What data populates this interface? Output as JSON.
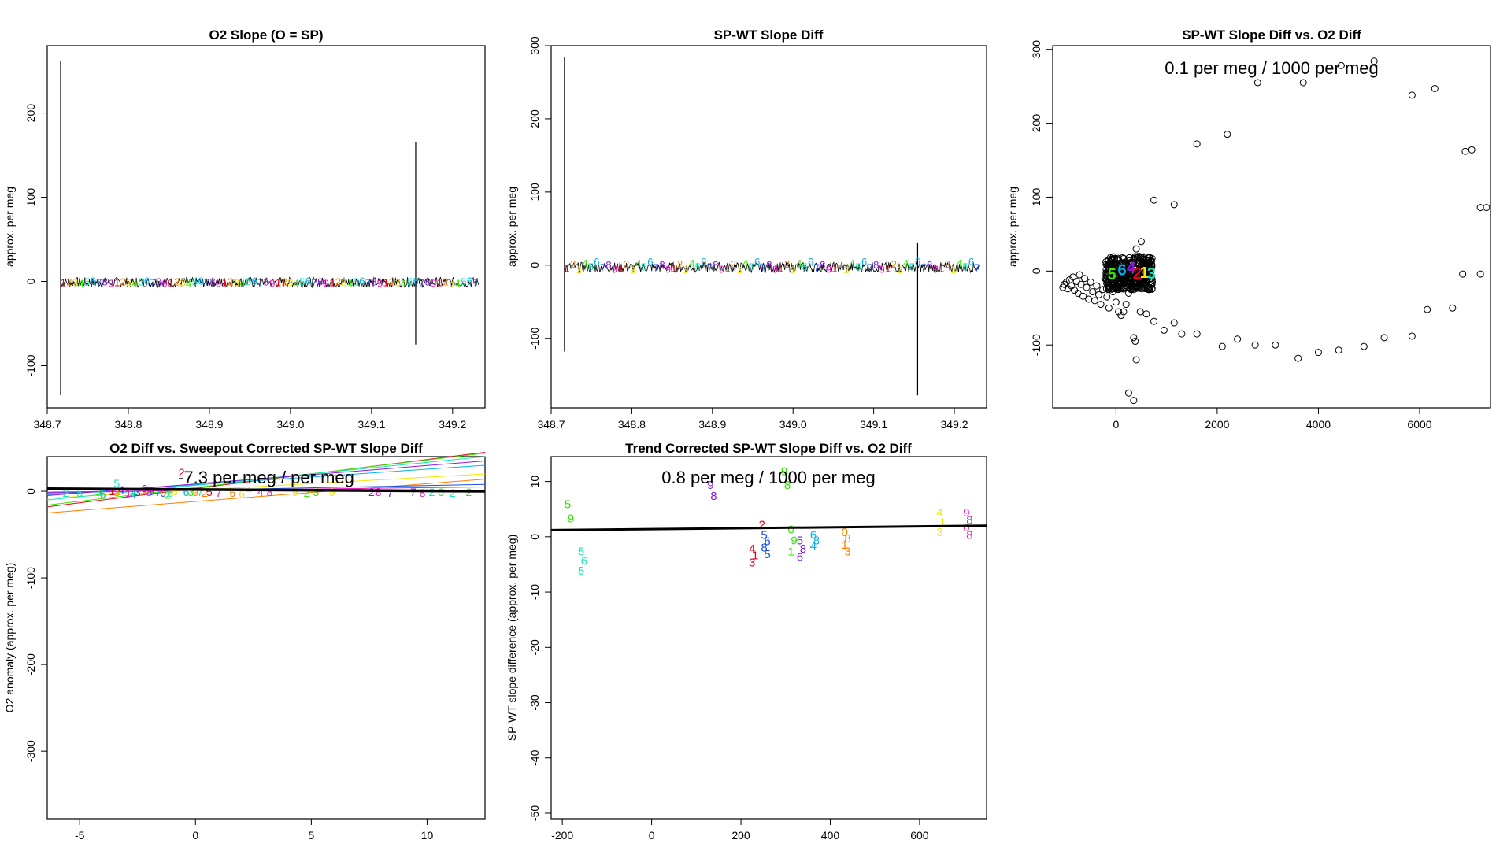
{
  "colors": {
    "series": [
      "#E6001A",
      "#FF7F00",
      "#F2E600",
      "#33E600",
      "#19E6B3",
      "#00B3F2",
      "#1A4DE6",
      "#8C19E6",
      "#E619C8"
    ],
    "trace": "#000000",
    "fit_line": "#000000"
  },
  "chart_data": [
    {
      "name": "o2-slope",
      "type": "line",
      "title": "O2 Slope (O = SP)",
      "xlabel": "",
      "ylabel": "approx. per meg",
      "xlim": [
        348.7,
        349.24
      ],
      "ylim": [
        -150,
        280
      ],
      "xticks": [
        "348.7",
        "348.8",
        "348.9",
        "349.0",
        "349.1",
        "349.2"
      ],
      "yticks": [
        "-100",
        "0",
        "100",
        "200"
      ],
      "x_range": [
        348.716,
        349.232
      ],
      "baseline": -1,
      "noise_amplitude": 6,
      "spikes": [
        {
          "x": 348.7165,
          "min": -135,
          "max": 262
        },
        {
          "x": 349.1545,
          "min": -75,
          "max": 166
        }
      ],
      "label_chars": "123456789",
      "label_values": [
        -1,
        0,
        -1,
        -2,
        0,
        1,
        -1,
        0,
        -2
      ]
    },
    {
      "name": "sp-wt-slope-diff",
      "type": "line",
      "title": "SP-WT Slope Diff",
      "xlabel": "",
      "ylabel": "approx. per meg",
      "xlim": [
        348.7,
        349.24
      ],
      "ylim": [
        -195,
        300
      ],
      "xticks": [
        "348.7",
        "348.8",
        "348.9",
        "349.0",
        "349.1",
        "349.2"
      ],
      "yticks": [
        "-100",
        "0",
        "100",
        "200",
        "300"
      ],
      "x_range": [
        348.716,
        349.232
      ],
      "baseline": -3,
      "noise_amplitude": 7,
      "spikes": [
        {
          "x": 348.7165,
          "min": -118,
          "max": 285
        },
        {
          "x": 349.1545,
          "min": -178,
          "max": 30
        }
      ],
      "label_chars": "123456789",
      "label_values": [
        -4,
        2,
        -6,
        3,
        -2,
        5,
        -3,
        1,
        -5
      ]
    },
    {
      "name": "sp-wt-vs-o2-diff",
      "type": "scatter",
      "title": "SP-WT Slope Diff vs. O2 Diff",
      "annotation": "0.1 per meg / 1000 per meg",
      "xlabel": "",
      "ylabel": "approx. per meg",
      "xlim": [
        -1250,
        7400
      ],
      "ylim": [
        -185,
        305
      ],
      "xticks": [
        "0",
        "2000",
        "4000",
        "6000"
      ],
      "yticks": [
        "-100",
        "0",
        "100",
        "200",
        "300"
      ],
      "outliers": [
        [
          -1050,
          -22
        ],
        [
          -1020,
          -18
        ],
        [
          -980,
          -15
        ],
        [
          -950,
          -24
        ],
        [
          -920,
          -12
        ],
        [
          -880,
          -20
        ],
        [
          -850,
          -8
        ],
        [
          -820,
          -26
        ],
        [
          -780,
          -14
        ],
        [
          -750,
          -30
        ],
        [
          -720,
          -5
        ],
        [
          -690,
          -18
        ],
        [
          -650,
          -34
        ],
        [
          -620,
          -10
        ],
        [
          -580,
          -22
        ],
        [
          -540,
          -38
        ],
        [
          -500,
          -15
        ],
        [
          -460,
          -28
        ],
        [
          -420,
          -40
        ],
        [
          -380,
          -20
        ],
        [
          -340,
          -32
        ],
        [
          -300,
          -45
        ],
        [
          -260,
          -25
        ],
        [
          -220,
          -10
        ],
        [
          -180,
          -35
        ],
        [
          -140,
          -50
        ],
        [
          -100,
          -18
        ],
        [
          -60,
          -28
        ],
        [
          0,
          -42
        ],
        [
          50,
          -55
        ],
        [
          100,
          -60
        ],
        [
          150,
          -55
        ],
        [
          200,
          -45
        ],
        [
          250,
          -30
        ],
        [
          300,
          -25
        ],
        [
          350,
          -15
        ],
        [
          400,
          30
        ],
        [
          450,
          20
        ],
        [
          500,
          40
        ],
        [
          380,
          -95
        ],
        [
          350,
          -90
        ],
        [
          400,
          -120
        ],
        [
          250,
          -165
        ],
        [
          350,
          -175
        ],
        [
          480,
          -55
        ],
        [
          600,
          -58
        ],
        [
          750,
          -68
        ],
        [
          950,
          -80
        ],
        [
          1150,
          -70
        ],
        [
          1300,
          -85
        ],
        [
          1600,
          -85
        ],
        [
          2100,
          -102
        ],
        [
          2400,
          -92
        ],
        [
          2750,
          -100
        ],
        [
          3150,
          -100
        ],
        [
          3600,
          -118
        ],
        [
          4000,
          -110
        ],
        [
          4400,
          -107
        ],
        [
          4900,
          -102
        ],
        [
          5300,
          -90
        ],
        [
          5850,
          -88
        ],
        [
          6150,
          -52
        ],
        [
          6650,
          -50
        ],
        [
          6850,
          -4
        ],
        [
          7200,
          -4
        ],
        [
          7200,
          86
        ],
        [
          7320,
          86
        ],
        [
          6900,
          162
        ],
        [
          7030,
          164
        ],
        [
          5850,
          238
        ],
        [
          6300,
          247
        ],
        [
          5100,
          284
        ],
        [
          4450,
          278
        ],
        [
          3700,
          255
        ],
        [
          2800,
          255
        ],
        [
          2200,
          185
        ],
        [
          1600,
          172
        ],
        [
          1150,
          90
        ],
        [
          750,
          96
        ]
      ],
      "cluster": {
        "x_min": -200,
        "x_max": 720,
        "y_min": -25,
        "y_max": 20
      },
      "cluster_labels": [
        {
          "x": -80,
          "y": -4,
          "text": "5"
        },
        {
          "x": 120,
          "y": 2,
          "text": "6"
        },
        {
          "x": 300,
          "y": 5,
          "text": "4"
        },
        {
          "x": 420,
          "y": -3,
          "text": "2"
        },
        {
          "x": 560,
          "y": -2,
          "text": "1"
        },
        {
          "x": 700,
          "y": -3,
          "text": "3"
        }
      ]
    },
    {
      "name": "o2-diff-vs-sweepout",
      "type": "scatter",
      "title": "O2 Diff vs. Sweepout Corrected SP-WT Slope Diff",
      "annotation": "-7.3 per meg / per meg",
      "xlabel": "",
      "ylabel": "O2 anomaly (approx. per meg)",
      "xlim": [
        -6.4,
        12.5
      ],
      "ylim": [
        -378,
        40
      ],
      "xticks": [
        "-5",
        "0",
        "5",
        "10"
      ],
      "yticks": [
        "-300",
        "-200",
        "-100",
        "0"
      ],
      "fit_line": {
        "x": [
          -6.4,
          12.5
        ],
        "y": [
          3,
          0
        ]
      },
      "series_lines": [
        {
          "color": 0,
          "x": [
            -6.4,
            12.5
          ],
          "y": [
            -18,
            45
          ]
        },
        {
          "color": 1,
          "x": [
            -6.4,
            12.5
          ],
          "y": [
            -25,
            14
          ]
        },
        {
          "color": 2,
          "x": [
            -6.4,
            12.5
          ],
          "y": [
            -8,
            20
          ]
        },
        {
          "color": 3,
          "x": [
            -6.4,
            12.5
          ],
          "y": [
            -16,
            44
          ]
        },
        {
          "color": 4,
          "x": [
            -6.4,
            12.5
          ],
          "y": [
            -10,
            40
          ]
        },
        {
          "color": 5,
          "x": [
            -6.4,
            12.5
          ],
          "y": [
            -4,
            30
          ]
        },
        {
          "color": 6,
          "x": [
            -6.4,
            12.5
          ],
          "y": [
            -2,
            8
          ]
        },
        {
          "color": 7,
          "x": [
            -6.4,
            12.5
          ],
          "y": [
            -5,
            35
          ]
        },
        {
          "color": 8,
          "x": [
            -6.4,
            12.5
          ],
          "y": [
            -1,
            5
          ]
        }
      ],
      "points": [
        [
          -5.6,
          -2,
          4,
          "2"
        ],
        [
          -5.0,
          -2,
          4,
          "5"
        ],
        [
          -4.2,
          -1,
          3,
          "3"
        ],
        [
          -4.0,
          -3,
          5,
          "6"
        ],
        [
          -3.6,
          0,
          0,
          "1"
        ],
        [
          -3.4,
          -1,
          1,
          "3"
        ],
        [
          -3.2,
          2,
          7,
          "4"
        ],
        [
          -3.4,
          9,
          4,
          "5"
        ],
        [
          -2.9,
          -2,
          8,
          "1"
        ],
        [
          -2.7,
          -3,
          5,
          "4"
        ],
        [
          -2.5,
          -1,
          6,
          "3"
        ],
        [
          -2.2,
          3,
          7,
          "6"
        ],
        [
          -2.0,
          -1,
          8,
          "8"
        ],
        [
          -1.9,
          0,
          6,
          "9"
        ],
        [
          -1.6,
          -1,
          5,
          "7"
        ],
        [
          -1.4,
          -2,
          6,
          "0"
        ],
        [
          -1.2,
          -4,
          3,
          "2"
        ],
        [
          -1.1,
          -2,
          4,
          "6"
        ],
        [
          -0.9,
          0,
          2,
          "8"
        ],
        [
          -0.6,
          22,
          0,
          "2"
        ],
        [
          -0.4,
          -1,
          5,
          "6"
        ],
        [
          -0.2,
          -1,
          3,
          "3"
        ],
        [
          0.0,
          -1,
          1,
          "9"
        ],
        [
          0.2,
          -1,
          4,
          "7"
        ],
        [
          0.4,
          -2,
          1,
          "2"
        ],
        [
          0.6,
          -1,
          0,
          "5"
        ],
        [
          1.0,
          -2,
          8,
          "7"
        ],
        [
          1.6,
          -2,
          1,
          "6"
        ],
        [
          2.0,
          -3,
          2,
          "6"
        ],
        [
          2.3,
          2,
          2,
          "4"
        ],
        [
          2.8,
          -1,
          8,
          "4"
        ],
        [
          3.2,
          -1,
          8,
          "8"
        ],
        [
          4.3,
          -1,
          2,
          "9"
        ],
        [
          4.8,
          -2,
          3,
          "2"
        ],
        [
          5.2,
          -1,
          3,
          "3"
        ],
        [
          5.9,
          -1,
          2,
          "9"
        ],
        [
          7.6,
          -1,
          7,
          "2"
        ],
        [
          7.9,
          -1,
          8,
          "8"
        ],
        [
          8.4,
          -2,
          7,
          "7"
        ],
        [
          9.4,
          -1,
          7,
          "7"
        ],
        [
          9.8,
          -2,
          8,
          "8"
        ],
        [
          10.2,
          -1,
          4,
          "2"
        ],
        [
          10.6,
          -1,
          3,
          "0"
        ],
        [
          11.1,
          -2,
          4,
          "2"
        ],
        [
          11.8,
          -1,
          3,
          "2"
        ]
      ]
    },
    {
      "name": "trend-corrected",
      "type": "scatter",
      "title": "Trend Corrected SP-WT Slope Diff vs. O2 Diff",
      "annotation": "0.8 per meg / 1000 per meg",
      "xlabel": "",
      "ylabel": "SP-WT slope difference (approx. per meg)",
      "xlim": [
        -225,
        750
      ],
      "ylim": [
        -51,
        14.5
      ],
      "xticks": [
        "-200",
        "0",
        "200",
        "400",
        "600"
      ],
      "yticks": [
        "-50",
        "-40",
        "-30",
        "-20",
        "-10",
        "0",
        "10"
      ],
      "fit_line": {
        "x": [
          -225,
          750
        ],
        "y": [
          1.2,
          2.0
        ]
      },
      "clusters": [
        {
          "color": 3,
          "x": -185,
          "y_top": 6,
          "y_bottom": 3.5,
          "labels": [
            "5",
            "9"
          ]
        },
        {
          "color": 4,
          "x": -155,
          "y_top": -2.5,
          "y_bottom": -6,
          "labels": [
            "5",
            "6",
            "5"
          ]
        },
        {
          "color": 7,
          "x": 135,
          "y_top": 9.5,
          "y_bottom": 7.5,
          "labels": [
            "9",
            "8"
          ]
        },
        {
          "color": 0,
          "x": 228,
          "y_top": -2,
          "y_bottom": -4.5,
          "labels": [
            "4",
            "1",
            "3"
          ]
        },
        {
          "color": 0,
          "x": 250,
          "y_top": 2.3,
          "y_bottom": 2.3,
          "labels": [
            "2"
          ]
        },
        {
          "color": 6,
          "x": 255,
          "y_top": 0.5,
          "y_bottom": -3,
          "labels": [
            "5",
            "6",
            "8",
            "5"
          ]
        },
        {
          "color": 3,
          "x": 300,
          "y_top": 12,
          "y_bottom": 9.5,
          "labels": [
            "9",
            "8"
          ]
        },
        {
          "color": 3,
          "x": 315,
          "y_top": 1.5,
          "y_bottom": -2.5,
          "labels": [
            "0",
            "9",
            "1"
          ]
        },
        {
          "color": 7,
          "x": 335,
          "y_top": -0.5,
          "y_bottom": -3.5,
          "labels": [
            "5",
            "8",
            "6"
          ]
        },
        {
          "color": 5,
          "x": 365,
          "y_top": 0.5,
          "y_bottom": -1.5,
          "labels": [
            "6",
            "8",
            "4"
          ]
        },
        {
          "color": 1,
          "x": 435,
          "y_top": 1,
          "y_bottom": -2.5,
          "labels": [
            "0",
            "8",
            "1",
            "3"
          ]
        },
        {
          "color": 2,
          "x": 648,
          "y_top": 4.5,
          "y_bottom": 1,
          "labels": [
            "4",
            "1",
            "3"
          ]
        },
        {
          "color": 8,
          "x": 708,
          "y_top": 4.5,
          "y_bottom": 0.5,
          "labels": [
            "9",
            "8",
            "0",
            "8"
          ]
        }
      ]
    }
  ]
}
